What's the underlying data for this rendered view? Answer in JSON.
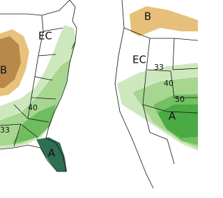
{
  "left_map": {
    "labels": [
      "EC",
      "B",
      "40",
      "33",
      "A"
    ]
  },
  "right_map": {
    "labels": [
      "B",
      "EC",
      "33",
      "40",
      "50",
      "A"
    ]
  }
}
